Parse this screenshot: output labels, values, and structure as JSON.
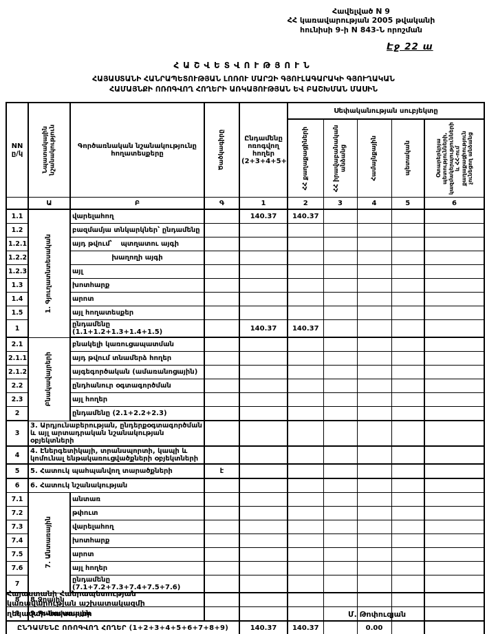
{
  "header": {
    "annex": [
      "Հավելված N 9",
      "ՀՀ կառավարության 2005 թվականի",
      "հունիսի 9-ի N 843-Ն որոշման"
    ],
    "note": "Էջ 22 ա",
    "title": "ՀԱՇՎԵՏՎՈՒԹՅՈՒՆ",
    "subtitle1": "ՀԱՅԱՍՏԱՆԻ ՀԱՆՐԱՊԵՏՈՒԹՅԱՆ ԼՈՌՈՒ ՄԱՐԶԻ ԳՅՈՒԼԱԳԱՐԱԿԻ ԳՅՈՒՂԱԿԱՆ",
    "subtitle2": "ՀԱՄԱՅՆՔԻ ՈՌՈԳՎՈՂ ՀՈՂԵՐԻ ԱՌԿԱՅՈՒԹՅԱՆ ԵՎ ԲԱՇԽՄԱՆ ՄԱՍԻՆ"
  },
  "table": {
    "header": {
      "nn": "NN ը/կ",
      "purpose": "Նպատակային նշանակություն",
      "functional": "Գործառնական նշանակությունը հողատեսքերը",
      "code": "Ծածկագիրը",
      "total": "Ընդամենը ոռոգվող հողեր (2+3+4+5+6)",
      "ownership": "Սեփականության սուբյեկտը",
      "owners": [
        "ՀՀ քաղաքացիների",
        "ՀՀ իրավաբանական անձանց",
        "Համայնքային",
        "պետական",
        "Օտարերկրյա պետությունների, կազմակերպությունների և ՀՀ-ում քաղաքացիություն չունեցող անձանց"
      ]
    },
    "letters": [
      "",
      "Ա",
      "Բ",
      "Գ",
      "1",
      "2",
      "3",
      "4",
      "5",
      "6"
    ],
    "rows": [
      {
        "no": "1.1",
        "label": "վարելահող",
        "section": {
          "label": "1. Գյուղատնտեսական",
          "span": 9
        },
        "v1": "140.37",
        "v2": "140.37"
      },
      {
        "no": "1.2",
        "label": "բազմամյա տնկարկներ՝ ընդամենը"
      },
      {
        "no": "1.2.1",
        "label": "այդ թվում՝",
        "label2": "պտղատու այգի"
      },
      {
        "no": "1.2.2",
        "label2": "խաղողի այգի"
      },
      {
        "no": "1.2.3",
        "label": "այլ"
      },
      {
        "no": "1.3",
        "label": "խոտհարք"
      },
      {
        "no": "1.4",
        "label": "արոտ"
      },
      {
        "no": "1.5",
        "label": "այլ հողատեսքեր"
      },
      {
        "no": "1",
        "label": "ընդամենը (1.1+1.2+1.3+1.4+1.5)",
        "v1": "140.37",
        "v2": "140.37"
      },
      {
        "no": "2.1",
        "label": "բնակելի կառուցապատման",
        "section": {
          "label": "Բնակավայրերի",
          "span": 6
        }
      },
      {
        "no": "2.1.1",
        "label": "այդ թվում տնամերձ հողեր"
      },
      {
        "no": "2.1.2",
        "label": "այգեգործական (ամառանոցային)"
      },
      {
        "no": "2.2",
        "label": "ընդհանուր օգտագործման"
      },
      {
        "no": "2.3",
        "label": "այլ հողեր"
      },
      {
        "no": "2",
        "label": "ընդամենը (2.1+2.2+2.3)"
      },
      {
        "no": "3",
        "label": "3. Արդյունաբերության, ընդերքօգտագործման և այլ արտադրական նշանակության օբյեկտների",
        "wide": true
      },
      {
        "no": "4",
        "label": "4. Էներգետիկայի, տրանսպորտի, կապի և կոմունալ ենթակառուցվածքների օբյեկտների",
        "wide": true
      },
      {
        "no": "5",
        "label": "5. Հատուկ պահպանվող տարածքների",
        "wide": true,
        "code": "է"
      },
      {
        "no": "6",
        "label": "6. Հատուկ նշանակության",
        "wide": true
      },
      {
        "no": "7.1",
        "label": "անտառ",
        "section": {
          "label": "7. Անտառային",
          "span": 7
        }
      },
      {
        "no": "7.2",
        "label": "թփուտ"
      },
      {
        "no": "7.3",
        "label": "վարելահող"
      },
      {
        "no": "7.4",
        "label": "խոտհարք"
      },
      {
        "no": "7.5",
        "label": "արոտ"
      },
      {
        "no": "7.6",
        "label": "այլ հողեր"
      },
      {
        "no": "7",
        "label": "ընդամենը (7.1+7.2+7.3+7.4+7.5+7.6)"
      },
      {
        "no": "8",
        "label": "8.Ջրային",
        "wide": true
      },
      {
        "no": "9",
        "label": "9.Պահուստային",
        "wide": true
      },
      {
        "grand": true,
        "label": "ԸՆԴԱՄԵՆԸ ՈՌՈԳՎՈՂ ՀՈՂԵՐ (1+2+3+4+5+6+7+8+9)",
        "v1": "140.37",
        "v2": "140.37",
        "v4": "0.00"
      }
    ]
  },
  "footer": {
    "org1": "Հայաստանի Հանրապետության",
    "org2": "կառավարության աշխատակազմի",
    "org3": "ղեկավար-նախարար",
    "signature": "Մ. Թոփուզյան"
  }
}
